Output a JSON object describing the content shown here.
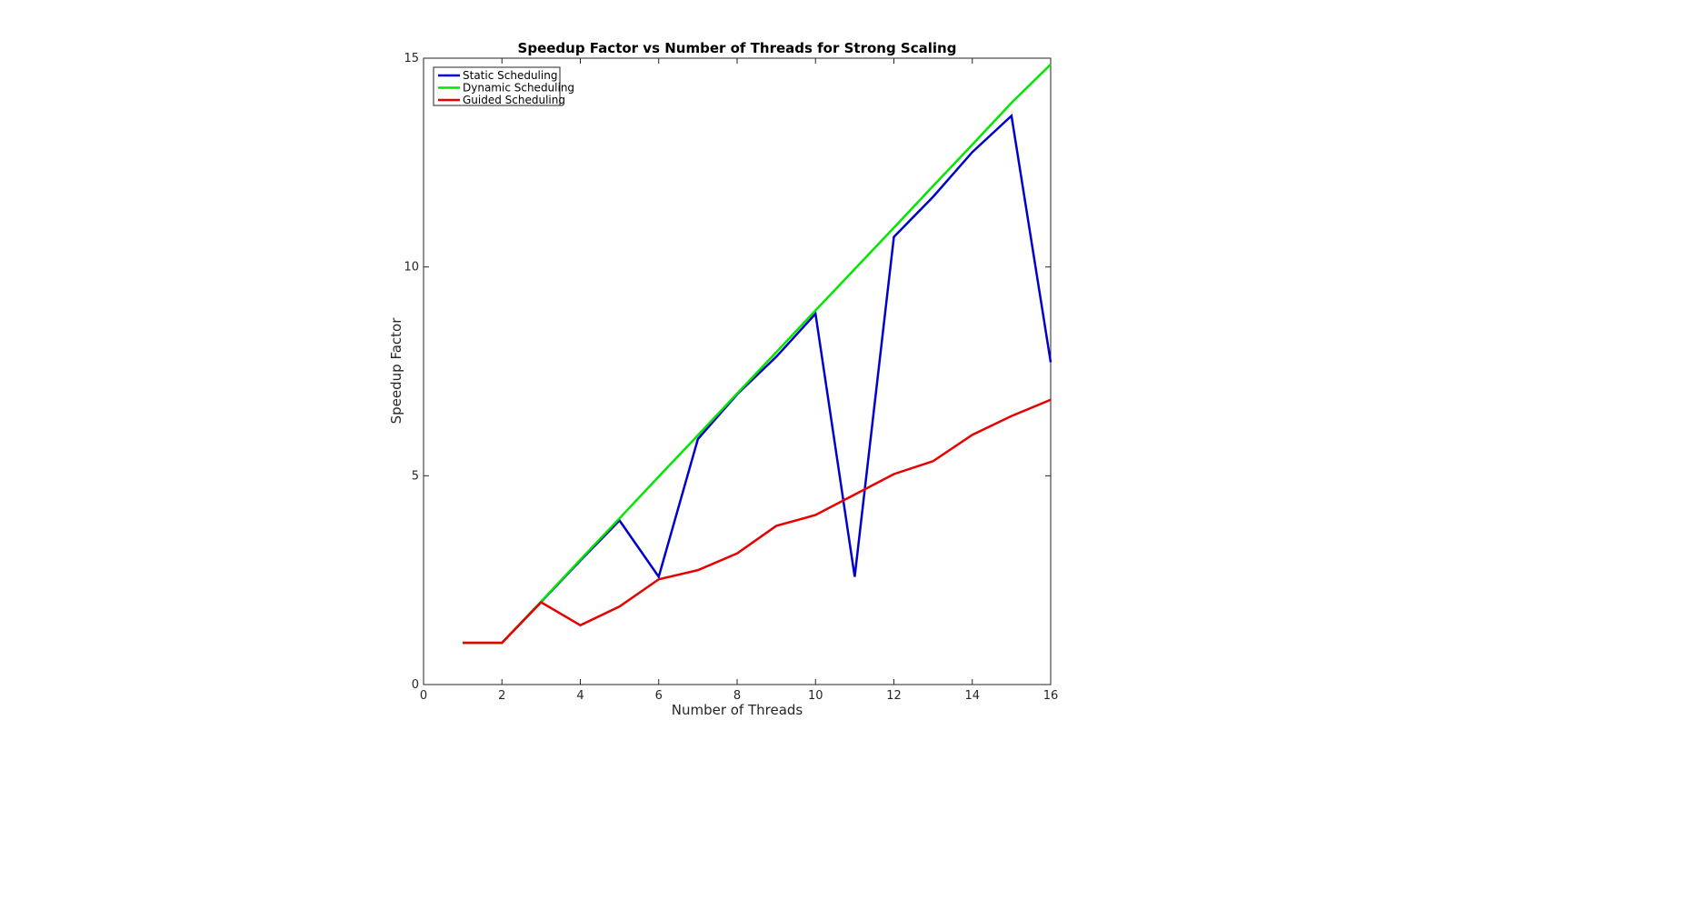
{
  "chart_data": {
    "type": "line",
    "title": "Speedup Factor vs Number of Threads for Strong Scaling",
    "xlabel": "Number of Threads",
    "ylabel": "Speedup Factor",
    "xlim": [
      0,
      16
    ],
    "ylim": [
      0,
      15
    ],
    "xticks": [
      0,
      2,
      4,
      6,
      8,
      10,
      12,
      14,
      16
    ],
    "yticks": [
      0,
      5,
      10,
      15
    ],
    "grid": false,
    "legend_position": "top-left",
    "x": [
      1,
      2,
      3,
      4,
      5,
      6,
      7,
      8,
      9,
      10,
      11,
      12,
      13,
      14,
      15,
      16
    ],
    "series": [
      {
        "name": "Static Scheduling",
        "color": "#0000cc",
        "values": [
          1,
          1,
          1.98,
          2.97,
          3.93,
          2.58,
          5.88,
          6.95,
          7.85,
          8.88,
          2.58,
          10.72,
          11.68,
          12.75,
          13.62,
          7.72
        ]
      },
      {
        "name": "Dynamic Scheduling",
        "color": "#00e600",
        "values": [
          1,
          1,
          1.99,
          2.99,
          3.98,
          4.98,
          5.97,
          6.97,
          7.96,
          8.96,
          9.95,
          10.94,
          11.94,
          12.93,
          13.93,
          14.85
        ]
      },
      {
        "name": "Guided Scheduling",
        "color": "#e60000",
        "values": [
          1,
          1,
          1.97,
          1.42,
          1.87,
          2.52,
          2.74,
          3.14,
          3.8,
          4.06,
          4.55,
          5.04,
          5.35,
          5.98,
          6.43,
          6.82
        ]
      }
    ]
  }
}
